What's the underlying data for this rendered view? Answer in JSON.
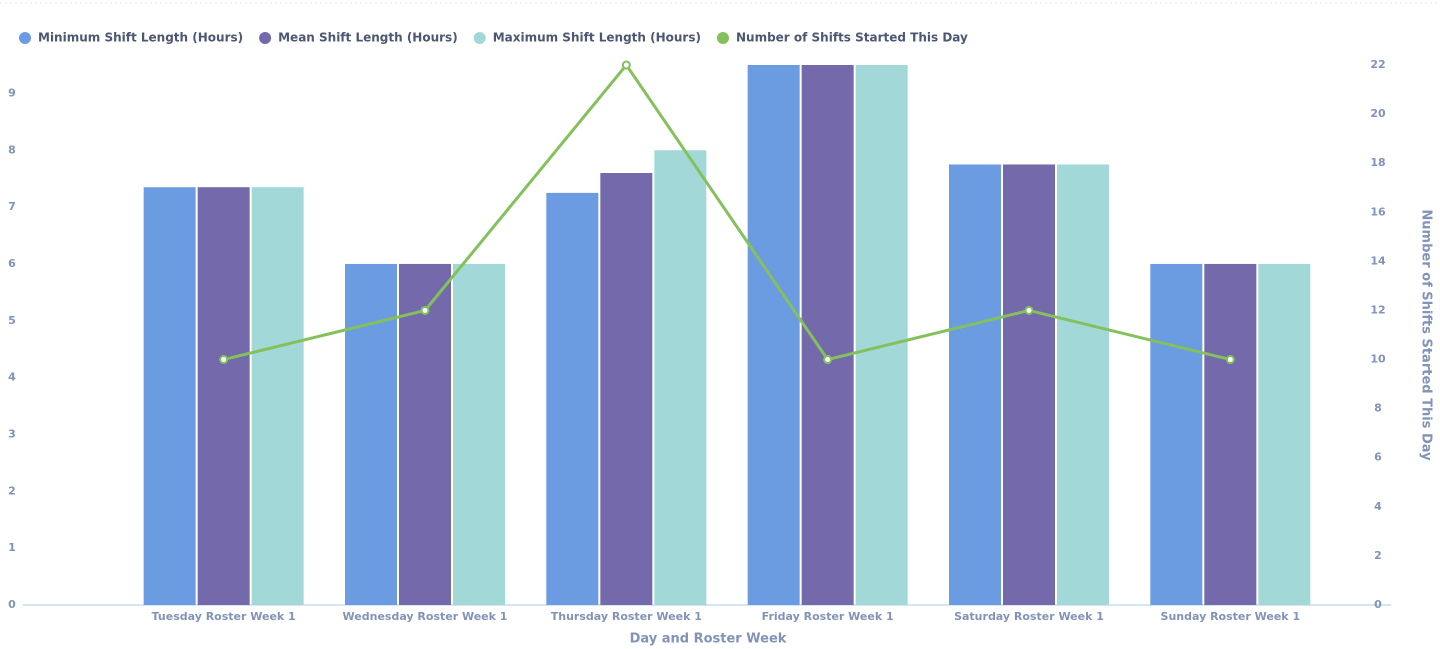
{
  "chart_data": {
    "type": "bar",
    "x_label": "Day and Roster Week",
    "y2_label": "Number of Shifts Started This Day",
    "categories": [
      "Tuesday Roster Week 1",
      "Wednesday Roster Week 1",
      "Thursday Roster Week 1",
      "Friday Roster Week 1",
      "Saturday Roster Week 1",
      "Sunday Roster Week 1"
    ],
    "series": [
      {
        "name": "Minimum Shift Length (Hours)",
        "type": "bar",
        "color": "#6b9be0",
        "values": [
          7.35,
          6,
          7.25,
          9.5,
          7.75,
          6
        ]
      },
      {
        "name": "Mean Shift Length (Hours)",
        "type": "bar",
        "color": "#7469aa",
        "values": [
          7.35,
          6,
          7.6,
          9.5,
          7.75,
          6
        ]
      },
      {
        "name": "Maximum Shift Length (Hours)",
        "type": "bar",
        "color": "#a3d8d8",
        "values": [
          7.35,
          6,
          8,
          9.5,
          7.75,
          6
        ]
      },
      {
        "name": "Number of Shifts Started This Day",
        "type": "line",
        "axis": "y2",
        "color": "#84c15c",
        "values": [
          10,
          12,
          22,
          10,
          12,
          10
        ]
      }
    ],
    "ylim": [
      0,
      9.5
    ],
    "yticks": [
      0,
      1,
      2,
      3,
      4,
      5,
      6,
      7,
      8,
      9
    ],
    "y2lim": [
      0,
      22
    ],
    "y2ticks": [
      0,
      2,
      4,
      6,
      8,
      10,
      12,
      14,
      16,
      18,
      20,
      22
    ]
  }
}
